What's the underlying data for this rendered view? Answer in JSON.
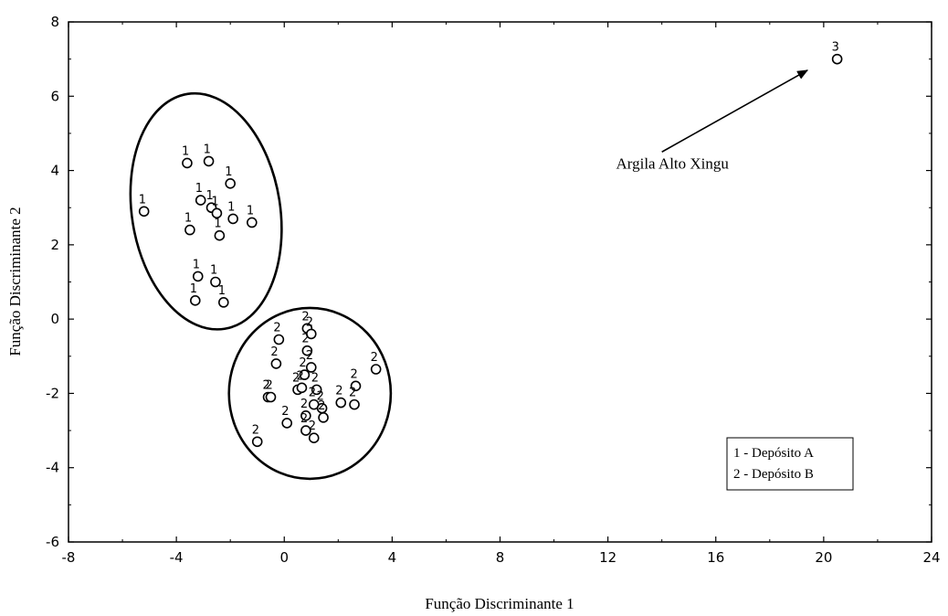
{
  "chart_data": {
    "type": "scatter",
    "title": "",
    "xlabel": "Função Discriminante 1",
    "ylabel": "Função Discriminante 2",
    "xlim": [
      -8,
      24
    ],
    "ylim": [
      -6,
      8
    ],
    "xticks": [
      -8,
      -4,
      0,
      4,
      8,
      12,
      16,
      20,
      24
    ],
    "yticks": [
      -6,
      -4,
      -2,
      0,
      2,
      4,
      6,
      8
    ],
    "grid": false,
    "legend_position": "bottom-right",
    "legend": [
      "1 - Depósito A",
      "2 - Depósito B"
    ],
    "series": [
      {
        "marker_label": "1",
        "points": [
          [
            -5.2,
            2.9
          ],
          [
            -3.6,
            4.2
          ],
          [
            -2.8,
            4.25
          ],
          [
            -2.0,
            3.65
          ],
          [
            -3.1,
            3.2
          ],
          [
            -2.7,
            3.0
          ],
          [
            -2.5,
            2.85
          ],
          [
            -1.9,
            2.7
          ],
          [
            -1.2,
            2.6
          ],
          [
            -3.5,
            2.4
          ],
          [
            -2.4,
            2.25
          ],
          [
            -3.2,
            1.15
          ],
          [
            -2.55,
            1.0
          ],
          [
            -3.3,
            0.5
          ],
          [
            -2.25,
            0.45
          ]
        ]
      },
      {
        "marker_label": "2",
        "points": [
          [
            0.85,
            -0.25
          ],
          [
            1.0,
            -0.4
          ],
          [
            -0.2,
            -0.55
          ],
          [
            0.85,
            -0.85
          ],
          [
            -0.3,
            -1.2
          ],
          [
            1.0,
            -1.3
          ],
          [
            0.75,
            -1.5
          ],
          [
            3.4,
            -1.35
          ],
          [
            1.2,
            -1.9
          ],
          [
            0.5,
            -1.9
          ],
          [
            0.65,
            -1.85
          ],
          [
            2.65,
            -1.8
          ],
          [
            2.1,
            -2.25
          ],
          [
            2.6,
            -2.3
          ],
          [
            1.1,
            -2.3
          ],
          [
            1.4,
            -2.4
          ],
          [
            -0.6,
            -2.1
          ],
          [
            -0.5,
            -2.1
          ],
          [
            0.8,
            -2.6
          ],
          [
            1.45,
            -2.65
          ],
          [
            0.1,
            -2.8
          ],
          [
            0.8,
            -3.0
          ],
          [
            1.1,
            -3.2
          ],
          [
            -1.0,
            -3.3
          ]
        ]
      },
      {
        "marker_label": "3",
        "points": [
          [
            20.5,
            7.0
          ]
        ]
      }
    ],
    "ellipses": [
      {
        "cx": -2.9,
        "cy": 2.9,
        "rx": 2.75,
        "ry": 3.2,
        "rotate_deg": -9
      },
      {
        "cx": 0.95,
        "cy": -2.0,
        "rx": 3.0,
        "ry": 2.3,
        "rotate_deg": 0
      }
    ],
    "annotation": {
      "text": "Argila Alto Xingu",
      "text_at": [
        12.3,
        4.05
      ],
      "arrow_from": [
        14.0,
        4.5
      ],
      "arrow_to": [
        19.4,
        6.7
      ]
    }
  }
}
